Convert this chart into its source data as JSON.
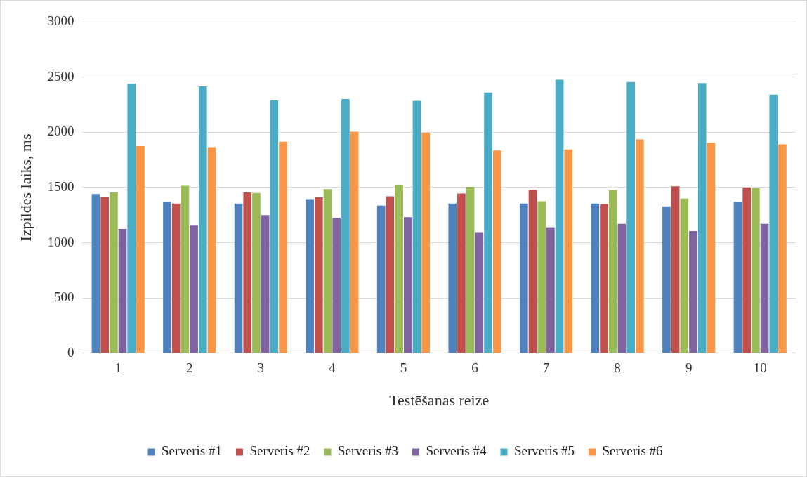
{
  "chart_data": {
    "type": "bar",
    "xlabel": "Testēšanas reize",
    "ylabel": "Izpildes laiks, ms",
    "categories": [
      "1",
      "2",
      "3",
      "4",
      "5",
      "6",
      "7",
      "8",
      "9",
      "10"
    ],
    "series": [
      {
        "name": "Serveris #1",
        "color": "#4f81bd",
        "values": [
          1440,
          1370,
          1355,
          1395,
          1335,
          1355,
          1355,
          1355,
          1330,
          1370
        ]
      },
      {
        "name": "Serveris #2",
        "color": "#c0504d",
        "values": [
          1415,
          1355,
          1455,
          1410,
          1420,
          1445,
          1480,
          1350,
          1510,
          1500
        ]
      },
      {
        "name": "Serveris #3",
        "color": "#9bbb59",
        "values": [
          1455,
          1515,
          1450,
          1485,
          1520,
          1505,
          1375,
          1475,
          1400,
          1495
        ]
      },
      {
        "name": "Serveris #4",
        "color": "#8064a2",
        "values": [
          1125,
          1160,
          1250,
          1225,
          1230,
          1095,
          1140,
          1170,
          1105,
          1170
        ]
      },
      {
        "name": "Serveris #5",
        "color": "#4bacc6",
        "values": [
          2440,
          2415,
          2290,
          2300,
          2285,
          2360,
          2475,
          2455,
          2445,
          2340
        ]
      },
      {
        "name": "Serveris #6",
        "color": "#f79646",
        "values": [
          1875,
          1865,
          1915,
          2005,
          1995,
          1835,
          1845,
          1935,
          1905,
          1890
        ]
      }
    ],
    "ylim": [
      0,
      3000
    ],
    "yticks": [
      0,
      500,
      1000,
      1500,
      2000,
      2500,
      3000
    ],
    "grid": "y",
    "legend": "bottom"
  }
}
